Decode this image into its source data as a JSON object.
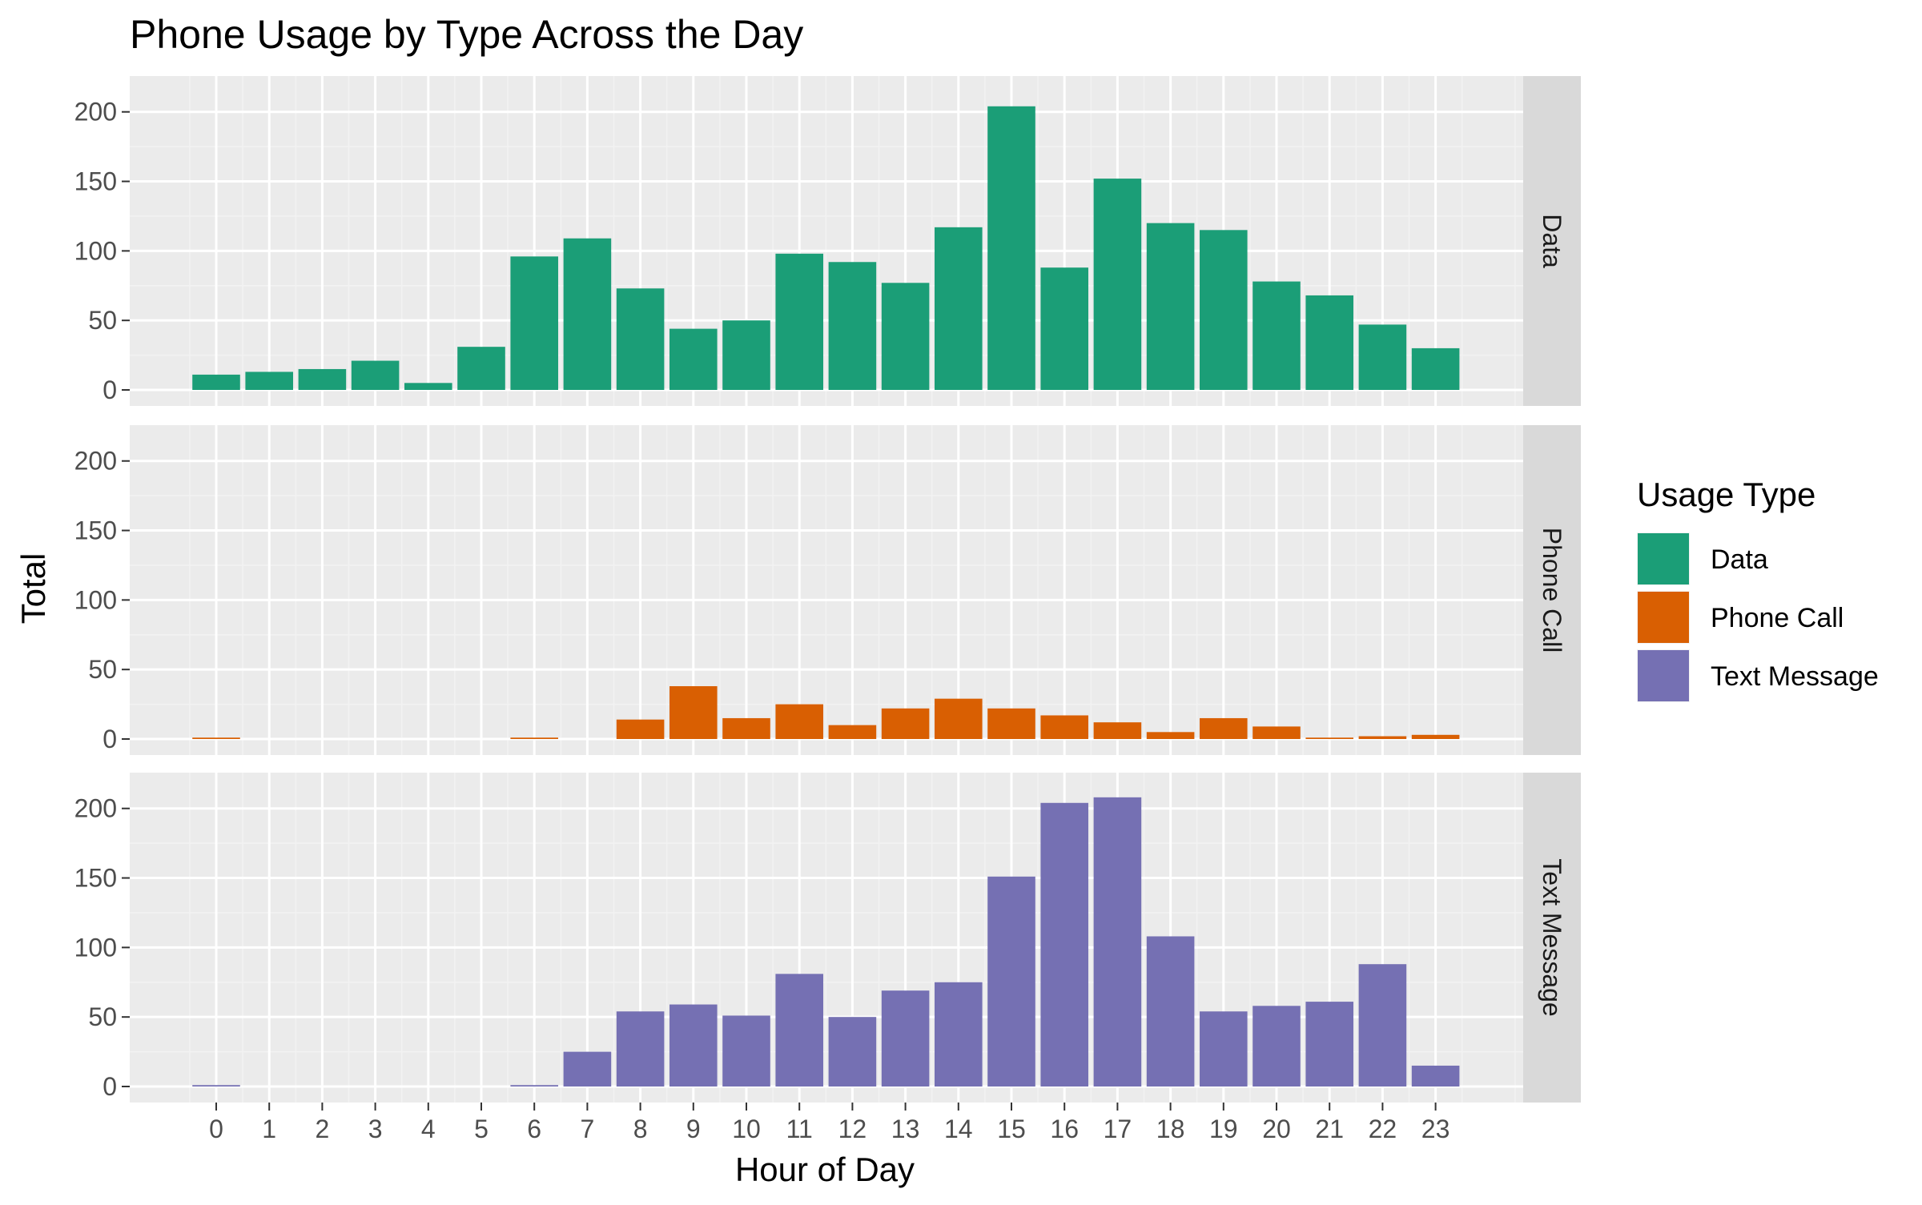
{
  "chart_data": {
    "type": "bar",
    "title": "Phone Usage by Type Across the Day",
    "xlabel": "Hour of Day",
    "ylabel": "Total",
    "ylim": [
      0,
      220
    ],
    "yticks": [
      0,
      50,
      100,
      150,
      200
    ],
    "categories": [
      "0",
      "1",
      "2",
      "3",
      "4",
      "5",
      "6",
      "7",
      "8",
      "9",
      "10",
      "11",
      "12",
      "13",
      "14",
      "15",
      "16",
      "17",
      "18",
      "19",
      "20",
      "21",
      "22",
      "23"
    ],
    "facet_layout": "rows",
    "grid": true,
    "legend": {
      "title": "Usage Type",
      "placement": "right",
      "entries": [
        "Data",
        "Phone Call",
        "Text Message"
      ]
    },
    "series": [
      {
        "name": "Data",
        "color": "#1B9E77",
        "values": [
          11,
          13,
          15,
          21,
          5,
          31,
          96,
          109,
          73,
          44,
          50,
          98,
          92,
          77,
          117,
          204,
          88,
          152,
          120,
          115,
          78,
          68,
          47,
          30
        ]
      },
      {
        "name": "Phone Call",
        "color": "#D95F02",
        "values": [
          1,
          0,
          0,
          0,
          0,
          0,
          1,
          0,
          14,
          38,
          15,
          25,
          10,
          22,
          29,
          22,
          17,
          12,
          5,
          15,
          9,
          1,
          2,
          3
        ]
      },
      {
        "name": "Text Message",
        "color": "#7570B3",
        "values": [
          1,
          0,
          0,
          0,
          0,
          0,
          1,
          25,
          54,
          59,
          51,
          81,
          50,
          69,
          75,
          151,
          204,
          208,
          108,
          54,
          58,
          61,
          88,
          15
        ]
      }
    ]
  }
}
